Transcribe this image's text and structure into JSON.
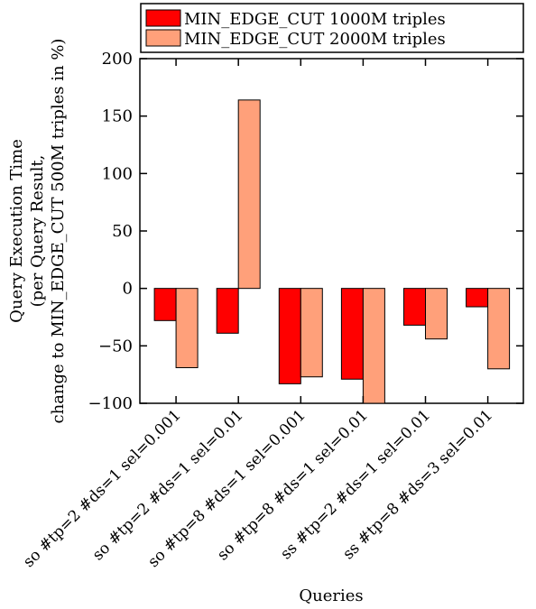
{
  "chart_data": {
    "type": "bar",
    "title": "",
    "xlabel": "Queries",
    "ylabel_lines": [
      "Query Execution Time",
      "(per Query Result,",
      "change to MIN_EDGE_CUT 500M triples in %)"
    ],
    "ylim": [
      -100,
      200
    ],
    "yticks": [
      -100,
      -50,
      0,
      50,
      100,
      150,
      200
    ],
    "ytick_labels": [
      "−100",
      "−50",
      "0",
      "50",
      "100",
      "150",
      "200"
    ],
    "grid": false,
    "legend_position": "top",
    "categories": [
      "so #tp=2 #ds=1 sel=0.001",
      "so #tp=2 #ds=1 sel=0.01",
      "so #tp=8 #ds=1 sel=0.001",
      "so #tp=8 #ds=1 sel=0.01",
      "ss #tp=2 #ds=1 sel=0.01",
      "ss #tp=8 #ds=3 sel=0.01"
    ],
    "series": [
      {
        "name": "MIN_EDGE_CUT 1000M triples",
        "color": "#ff0000",
        "values": [
          -28,
          -39,
          -83,
          -79,
          -32,
          -16
        ]
      },
      {
        "name": "MIN_EDGE_CUT 2000M triples",
        "color": "#ffa07a",
        "values": [
          -69,
          164,
          -77,
          -101,
          -44,
          -70
        ]
      }
    ]
  }
}
